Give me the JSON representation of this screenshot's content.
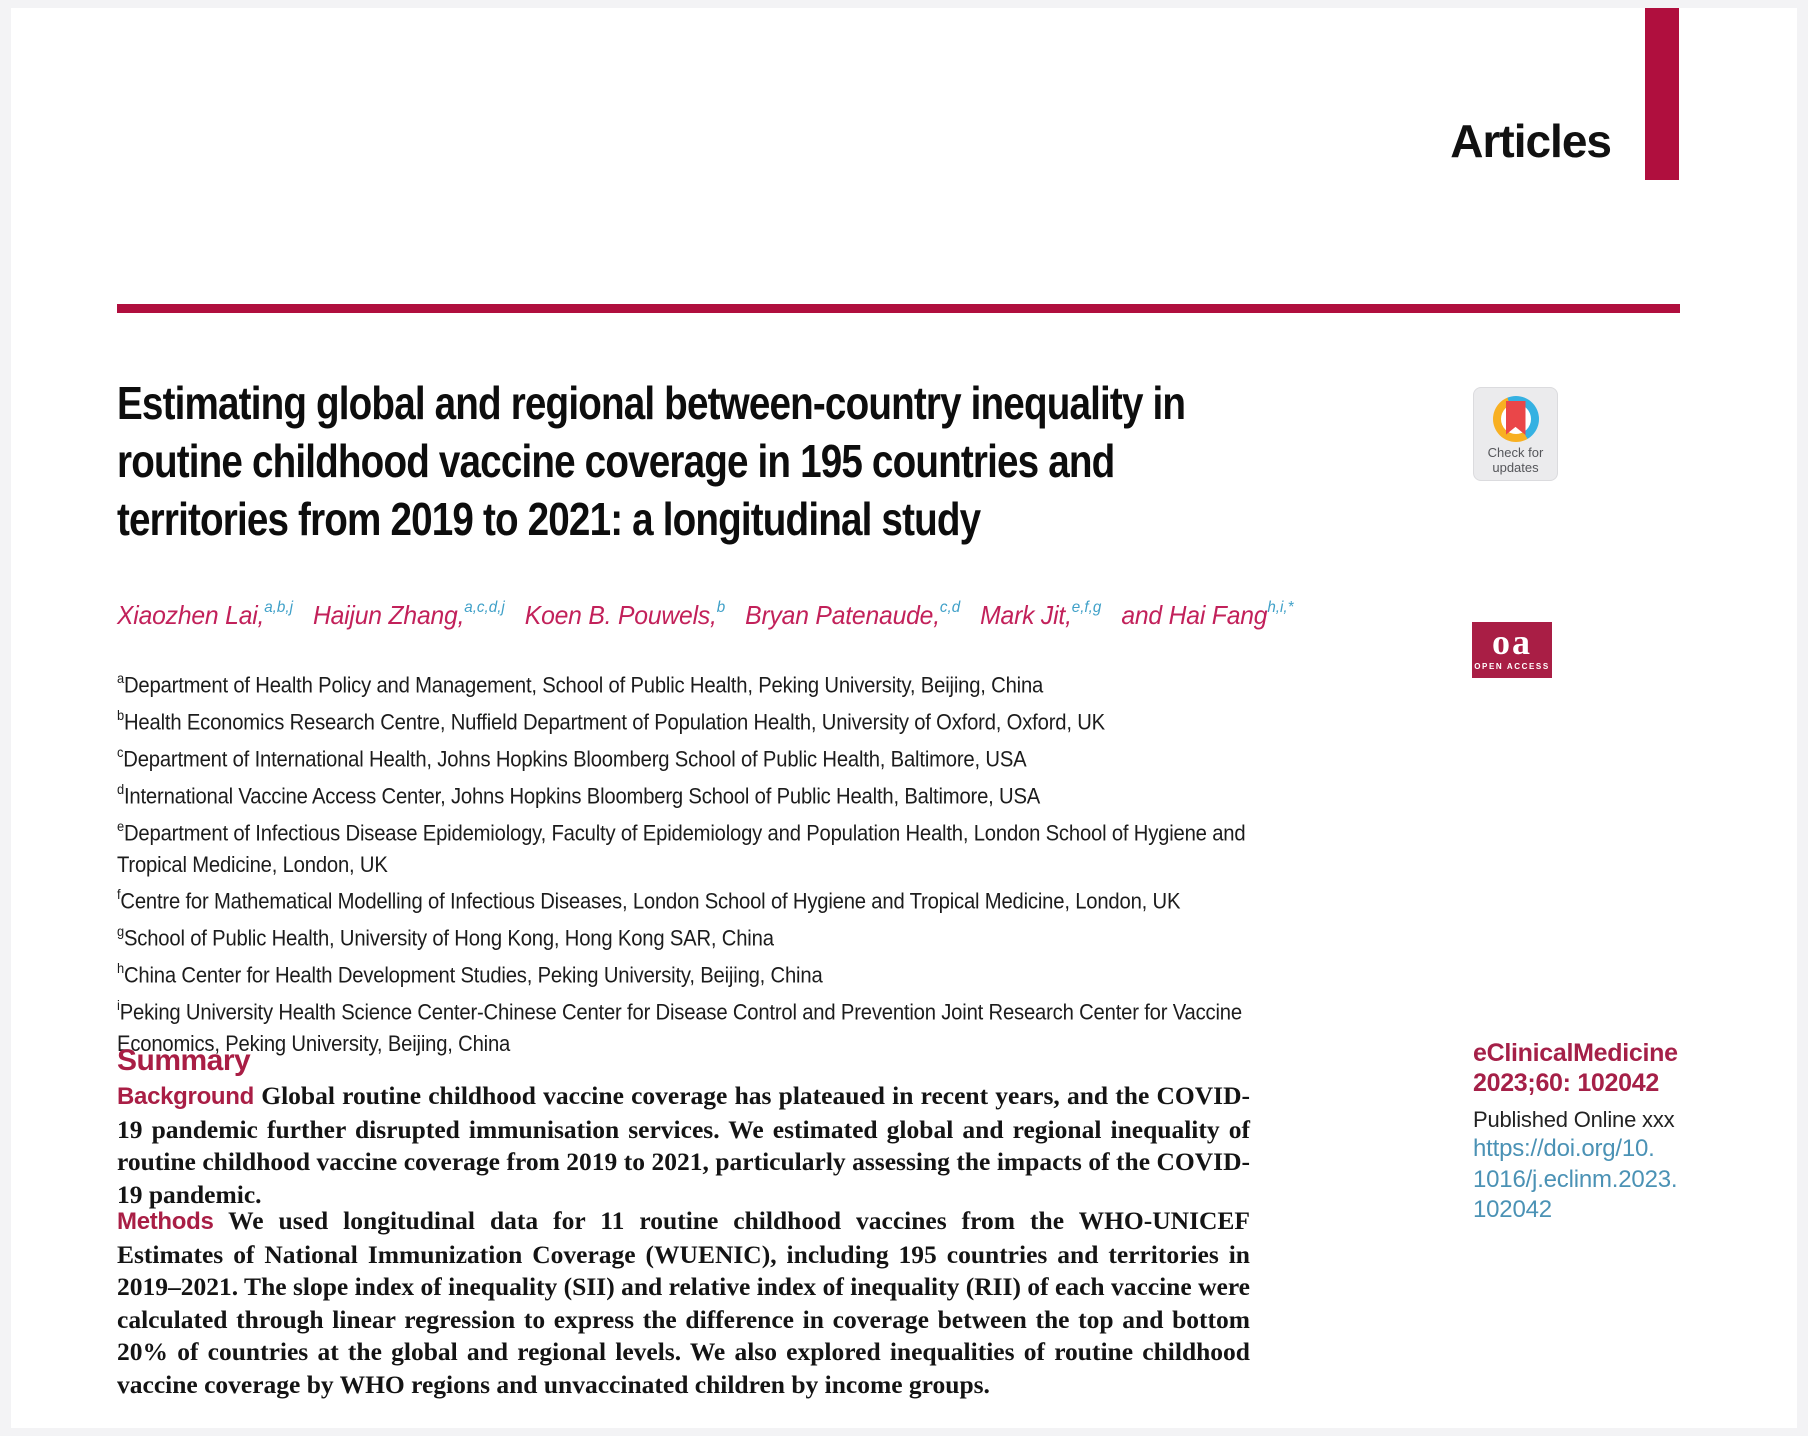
{
  "header": {
    "kicker": "Articles"
  },
  "article": {
    "title_lines": [
      "Estimating global and regional between-country inequality in",
      "routine childhood vaccine coverage in 195 countries and",
      "territories from 2019 to 2021: a longitudinal study"
    ],
    "authors": [
      {
        "name": "Xiaozhen Lai,",
        "sup": "a,b,j"
      },
      {
        "name": "Haijun Zhang,",
        "sup": "a,c,d,j"
      },
      {
        "name": "Koen B. Pouwels,",
        "sup": "b"
      },
      {
        "name": "Bryan Patenaude,",
        "sup": "c,d"
      },
      {
        "name": "Mark Jit,",
        "sup": "e,f,g"
      },
      {
        "name": "and Hai Fang",
        "sup": "h,i,*"
      }
    ],
    "affiliations": [
      {
        "sup": "a",
        "text": "Department of Health Policy and Management, School of Public Health, Peking University, Beijing, China"
      },
      {
        "sup": "b",
        "text": "Health Economics Research Centre, Nuffield Department of Population Health, University of Oxford, Oxford, UK"
      },
      {
        "sup": "c",
        "text": "Department of International Health, Johns Hopkins Bloomberg School of Public Health, Baltimore, USA"
      },
      {
        "sup": "d",
        "text": "International Vaccine Access Center, Johns Hopkins Bloomberg School of Public Health, Baltimore, USA"
      },
      {
        "sup": "e",
        "text": "Department of Infectious Disease Epidemiology, Faculty of Epidemiology and Population Health, London School of Hygiene and Tropical Medicine, London, UK"
      },
      {
        "sup": "f",
        "text": "Centre for Mathematical Modelling of Infectious Diseases, London School of Hygiene and Tropical Medicine, London, UK"
      },
      {
        "sup": "g",
        "text": "School of Public Health, University of Hong Kong, Hong Kong SAR, China"
      },
      {
        "sup": "h",
        "text": "China Center for Health Development Studies, Peking University, Beijing, China"
      },
      {
        "sup": "i",
        "text": "Peking University Health Science Center-Chinese Center for Disease Control and Prevention Joint Research Center for Vaccine Economics, Peking University, Beijing, China"
      }
    ]
  },
  "summary": {
    "heading": "Summary",
    "sections": [
      {
        "label": "Background",
        "text": "Global routine childhood vaccine coverage has plateaued in recent years, and the COVID-19 pandemic further disrupted immunisation services. We estimated global and regional inequality of routine childhood vaccine coverage from 2019 to 2021, particularly assessing the impacts of the COVID-19 pandemic."
      },
      {
        "label": "Methods",
        "text": "We used longitudinal data for 11 routine childhood vaccines from the WHO-UNICEF Estimates of National Immunization Coverage (WUENIC), including 195 countries and territories in 2019–2021. The slope index of inequality (SII) and relative index of inequality (RII) of each vaccine were calculated through linear regression to express the difference in coverage between the top and bottom 20% of countries at the global and regional levels. We also explored inequalities of routine childhood vaccine coverage by WHO regions and unvaccinated children by income groups."
      }
    ]
  },
  "badges": {
    "check_for_updates": {
      "line1": "Check for",
      "line2": "updates"
    },
    "open_access": {
      "big": "oa",
      "small": "OPEN ACCESS"
    }
  },
  "sidebar": {
    "journal": "eClinicalMedicine",
    "citation": "2023;60: 102042",
    "published": "Published Online xxx",
    "doi_lines": [
      "https://doi.org/10.",
      "1016/j.eclinm.2023.",
      "102042"
    ]
  },
  "colors": {
    "accent_crimson": "#B00F3E",
    "heading_crimson": "#A91E45",
    "author_crimson": "#C2215A",
    "superscript_blue": "#3FA0C8",
    "link_blue": "#4B92B5",
    "open_access_red": "#A91E45",
    "bookmark_red": "#EA4649",
    "ring_teal": "#35B1E2",
    "ring_yellow": "#F8B022"
  }
}
